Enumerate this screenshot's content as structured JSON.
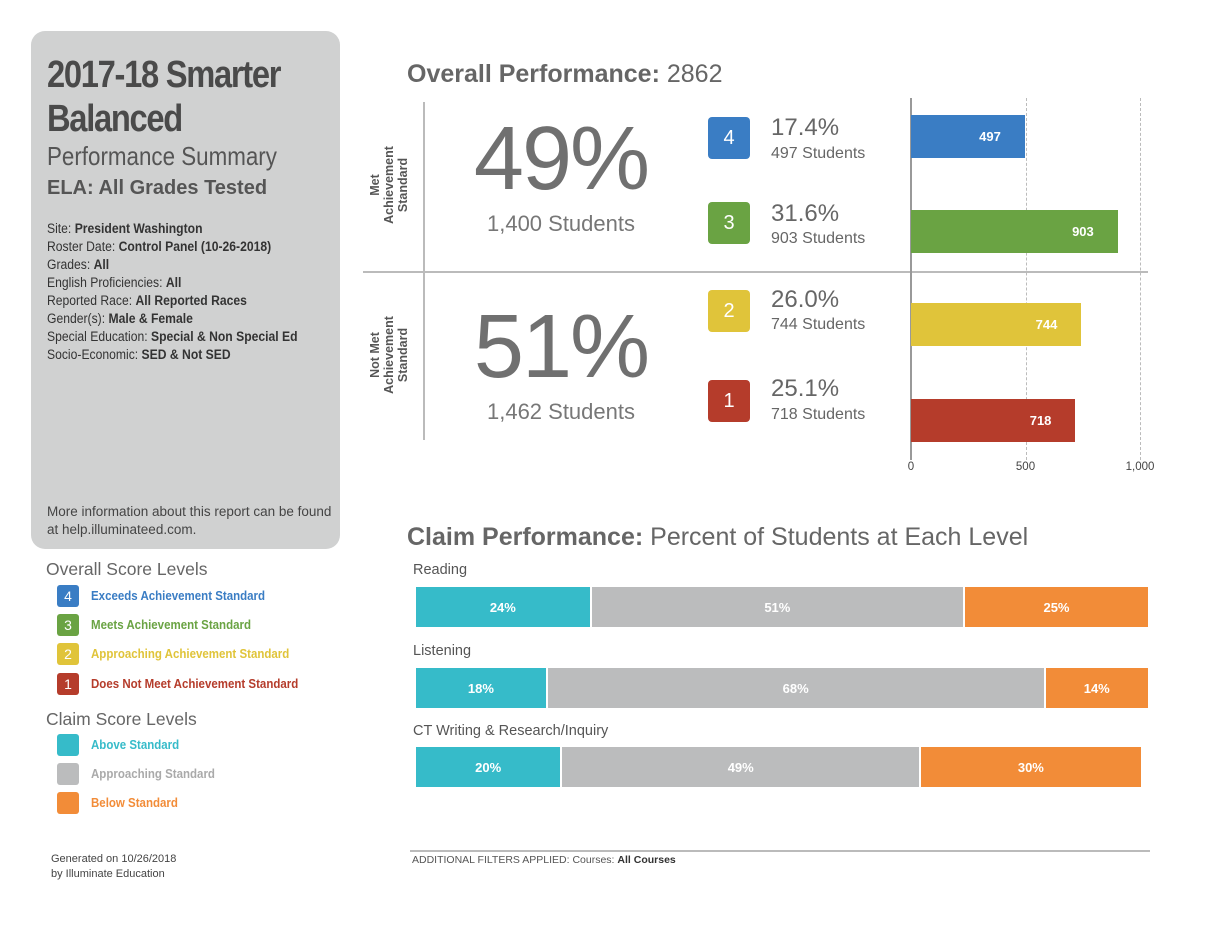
{
  "sidebar": {
    "title_line1": "2017-18 Smarter",
    "title_line2": "Balanced",
    "subtitle": "Performance Summary",
    "subject": "ELA: All Grades Tested",
    "meta": [
      {
        "label": "Site: ",
        "value": "President Washington"
      },
      {
        "label": "Roster Date: ",
        "value": "Control Panel (10-26-2018)"
      },
      {
        "label": "Grades: ",
        "value": "All"
      },
      {
        "label": "English Proficiencies: ",
        "value": "All"
      },
      {
        "label": "Reported Race: ",
        "value": "All Reported Races"
      },
      {
        "label": "Gender(s): ",
        "value": "Male & Female"
      },
      {
        "label": "Special Education: ",
        "value": "Special & Non Special Ed"
      },
      {
        "label": "Socio-Economic: ",
        "value": "SED & Not SED"
      }
    ],
    "info": "More information about this report can be found at help.illuminateed.com."
  },
  "legends": {
    "overall_title": "Overall Score Levels",
    "overall": [
      {
        "num": "4",
        "label": "Exceeds Achievement Standard",
        "color": "#3a7dc4"
      },
      {
        "num": "3",
        "label": "Meets Achievement Standard",
        "color": "#6aa343"
      },
      {
        "num": "2",
        "label": "Approaching Achievement Standard",
        "color": "#e0c43a"
      },
      {
        "num": "1",
        "label": "Does Not Meet Achievement Standard",
        "color": "#b53c2b"
      }
    ],
    "claim_title": "Claim Score Levels",
    "claim": [
      {
        "label": "Above Standard",
        "color": "#36bbc9"
      },
      {
        "label": "Approaching Standard",
        "color": "#bbbcbd"
      },
      {
        "label": "Below Standard",
        "color": "#f28c38"
      }
    ]
  },
  "footer": {
    "generated_line1": "Generated on 10/26/2018",
    "generated_line2": "by Illuminate Education",
    "filters_prefix": "ADDITIONAL FILTERS APPLIED:  Courses: ",
    "filters_value": "All Courses"
  },
  "overall": {
    "title_bold": "Overall Performance:",
    "title_value": "2862",
    "met": {
      "label_line1": "Met",
      "label_line2": "Achievement",
      "label_line3": "Standard",
      "pct": "49%",
      "students": "1,400 Students"
    },
    "not_met": {
      "label_line1": "Not Met",
      "label_line2": "Achievement",
      "label_line3": "Standard",
      "pct": "51%",
      "students": "1,462 Students"
    },
    "levels": [
      {
        "num": "4",
        "pct": "17.4%",
        "students": "497 Students",
        "count": "497",
        "color": "#3a7dc4"
      },
      {
        "num": "3",
        "pct": "31.6%",
        "students": "903 Students",
        "count": "903",
        "color": "#6aa343"
      },
      {
        "num": "2",
        "pct": "26.0%",
        "students": "744 Students",
        "count": "744",
        "color": "#e0c43a"
      },
      {
        "num": "1",
        "pct": "25.1%",
        "students": "718 Students",
        "count": "718",
        "color": "#b53c2b"
      }
    ],
    "axis_ticks": [
      "0",
      "500",
      "1,000"
    ]
  },
  "chart_data": [
    {
      "type": "bar",
      "orientation": "horizontal",
      "categories": [
        "4",
        "3",
        "2",
        "1"
      ],
      "values": [
        497,
        903,
        744,
        718
      ],
      "xlim": [
        0,
        1000
      ],
      "xticks": [
        0,
        500,
        1000
      ],
      "grid": true
    },
    {
      "type": "bar",
      "orientation": "horizontal",
      "stacked": true,
      "title": "Claim Performance: Percent of Students at Each Level",
      "categories": [
        "Reading",
        "Listening",
        "CT Writing & Research/Inquiry"
      ],
      "series": [
        {
          "name": "Above Standard",
          "values": [
            24,
            18,
            20
          ],
          "color": "#36bbc9"
        },
        {
          "name": "Approaching Standard",
          "values": [
            51,
            68,
            49
          ],
          "color": "#bbbcbd"
        },
        {
          "name": "Below Standard",
          "values": [
            25,
            14,
            30
          ],
          "color": "#f28c38"
        }
      ]
    }
  ],
  "claims": {
    "title_bold": "Claim Performance:",
    "title_rest": "Percent of Students at Each Level",
    "rows": [
      {
        "name": "Reading",
        "segments": [
          "24%",
          "51%",
          "25%"
        ]
      },
      {
        "name": "Listening",
        "segments": [
          "18%",
          "68%",
          "14%"
        ]
      },
      {
        "name": "CT Writing & Research/Inquiry",
        "segments": [
          "20%",
          "49%",
          "30%"
        ]
      }
    ]
  }
}
